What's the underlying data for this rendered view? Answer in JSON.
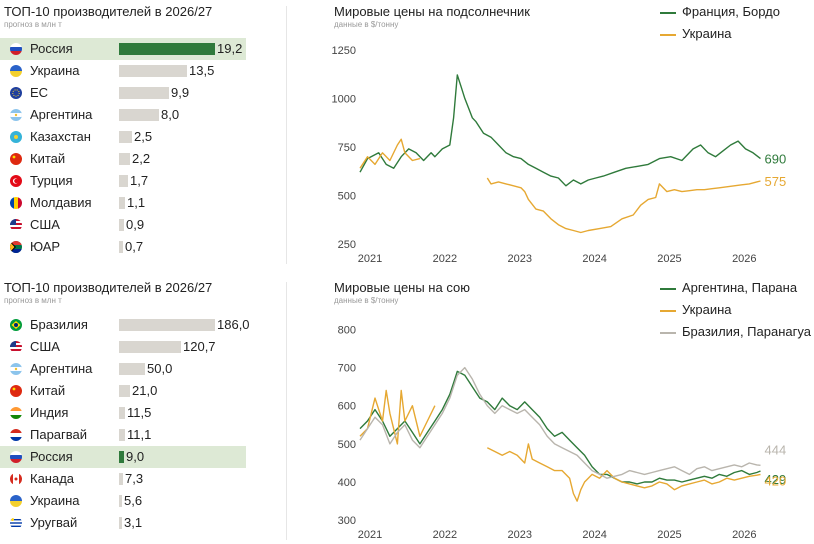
{
  "top": {
    "table": {
      "title": "ТОП-10 производителей в 2026/27",
      "subtitle": "прогноз в млн т",
      "max": 19.2,
      "rows": [
        {
          "country": "Россия",
          "value": 19.2,
          "label": "19,2",
          "flag": "ru",
          "highlight": true
        },
        {
          "country": "Украина",
          "value": 13.5,
          "label": "13,5",
          "flag": "ua",
          "highlight": false
        },
        {
          "country": "ЕС",
          "value": 9.9,
          "label": "9,9",
          "flag": "eu",
          "highlight": false
        },
        {
          "country": "Аргентина",
          "value": 8.0,
          "label": "8,0",
          "flag": "ar",
          "highlight": false
        },
        {
          "country": "Казахстан",
          "value": 2.5,
          "label": "2,5",
          "flag": "kz",
          "highlight": false
        },
        {
          "country": "Китай",
          "value": 2.2,
          "label": "2,2",
          "flag": "cn",
          "highlight": false
        },
        {
          "country": "Турция",
          "value": 1.7,
          "label": "1,7",
          "flag": "tr",
          "highlight": false
        },
        {
          "country": "Молдавия",
          "value": 1.1,
          "label": "1,1",
          "flag": "md",
          "highlight": false
        },
        {
          "country": "США",
          "value": 0.9,
          "label": "0,9",
          "flag": "us",
          "highlight": false
        },
        {
          "country": "ЮАР",
          "value": 0.7,
          "label": "0,7",
          "flag": "za",
          "highlight": false
        }
      ]
    },
    "chart": {
      "title": "Мировые цены на подсолнечник",
      "subtitle": "данные в $/тонну",
      "legend": [
        "Франция, Бордо",
        "Украина"
      ]
    }
  },
  "bottom": {
    "table": {
      "title": "ТОП-10 производителей в 2026/27",
      "subtitle": "прогноз в млн т",
      "max": 186.0,
      "rows": [
        {
          "country": "Бразилия",
          "value": 186.0,
          "label": "186,0",
          "flag": "br",
          "highlight": false
        },
        {
          "country": "США",
          "value": 120.7,
          "label": "120,7",
          "flag": "us",
          "highlight": false
        },
        {
          "country": "Аргентина",
          "value": 50.0,
          "label": "50,0",
          "flag": "ar",
          "highlight": false
        },
        {
          "country": "Китай",
          "value": 21.0,
          "label": "21,0",
          "flag": "cn",
          "highlight": false
        },
        {
          "country": "Индия",
          "value": 11.5,
          "label": "11,5",
          "flag": "in",
          "highlight": false
        },
        {
          "country": "Парагвай",
          "value": 11.1,
          "label": "11,1",
          "flag": "py",
          "highlight": false
        },
        {
          "country": "Россия",
          "value": 9.0,
          "label": "9,0",
          "flag": "ru",
          "highlight": true
        },
        {
          "country": "Канада",
          "value": 7.3,
          "label": "7,3",
          "flag": "ca",
          "highlight": false
        },
        {
          "country": "Украина",
          "value": 5.6,
          "label": "5,6",
          "flag": "ua",
          "highlight": false
        },
        {
          "country": "Уругвай",
          "value": 3.1,
          "label": "3,1",
          "flag": "uy",
          "highlight": false
        }
      ]
    },
    "chart": {
      "title": "Мировые цены на сою",
      "subtitle": "данные в $/тонну",
      "legend": [
        "Аргентина, Парана",
        "Украина",
        "Бразилия, Паранагуа"
      ]
    }
  },
  "colors": {
    "green": "#2f7a3b",
    "orange": "#e6a832",
    "gray": "#b9b5ad",
    "bar": "#d9d6d0",
    "highlight": "#dde9d5"
  },
  "chart_data": [
    {
      "type": "line",
      "title": "Мировые цены на подсолнечник",
      "subtitle": "данные в $/тонну",
      "x_ticks": [
        "2021",
        "2022",
        "2023",
        "2024",
        "2025",
        "2026"
      ],
      "y_ticks": [
        250,
        500,
        750,
        1000,
        1250
      ],
      "xlim": [
        2021.0,
        2026.45
      ],
      "ylim": [
        230,
        1290
      ],
      "series": [
        {
          "name": "Франция, Бордо",
          "color": "#2f7a3b",
          "end_label": "690",
          "x": [
            2021.0,
            2021.1,
            2021.25,
            2021.35,
            2021.45,
            2021.55,
            2021.65,
            2021.75,
            2021.85,
            2021.95,
            2022.0,
            2022.1,
            2022.2,
            2022.25,
            2022.3,
            2022.35,
            2022.4,
            2022.45,
            2022.5,
            2022.55,
            2022.65,
            2022.75,
            2022.85,
            2022.95,
            2023.05,
            2023.15,
            2023.25,
            2023.35,
            2023.45,
            2023.55,
            2023.65,
            2023.75,
            2023.85,
            2023.95,
            2024.05,
            2024.15,
            2024.25,
            2024.4,
            2024.55,
            2024.7,
            2024.85,
            2025.0,
            2025.15,
            2025.3,
            2025.45,
            2025.55,
            2025.65,
            2025.75,
            2025.85,
            2025.95,
            2026.05,
            2026.15,
            2026.25,
            2026.35
          ],
          "y": [
            620,
            690,
            720,
            660,
            640,
            700,
            740,
            720,
            680,
            720,
            700,
            740,
            760,
            900,
            1120,
            1060,
            1000,
            950,
            900,
            880,
            820,
            800,
            760,
            720,
            700,
            690,
            660,
            640,
            620,
            600,
            590,
            550,
            580,
            560,
            580,
            590,
            600,
            620,
            640,
            650,
            660,
            690,
            700,
            680,
            740,
            760,
            720,
            700,
            730,
            760,
            780,
            740,
            720,
            690
          ]
        },
        {
          "name": "Украина",
          "color": "#e6a832",
          "end_label": "575",
          "x": [
            2021.0,
            2021.1,
            2021.2,
            2021.3,
            2021.4,
            2021.5,
            2021.55,
            2021.6,
            2021.7,
            2021.8,
            null,
            2022.7,
            2022.75,
            2022.85,
            2022.95,
            2023.05,
            2023.15,
            2023.2,
            2023.25,
            2023.35,
            2023.45,
            2023.55,
            2023.65,
            2023.75,
            2023.85,
            2023.95,
            2024.05,
            2024.2,
            2024.35,
            2024.5,
            2024.65,
            2024.75,
            2024.85,
            2024.95,
            2025.0,
            2025.1,
            2025.2,
            2025.3,
            2025.4,
            2025.5,
            2025.6,
            2025.7,
            2025.8,
            2025.9,
            2026.0,
            2026.1,
            2026.2,
            2026.3,
            2026.35
          ],
          "y": [
            640,
            700,
            660,
            720,
            680,
            760,
            790,
            720,
            680,
            690,
            null,
            590,
            560,
            570,
            560,
            550,
            540,
            520,
            480,
            430,
            420,
            380,
            350,
            330,
            320,
            310,
            320,
            330,
            340,
            380,
            400,
            450,
            480,
            490,
            560,
            520,
            530,
            520,
            525,
            530,
            530,
            535,
            540,
            545,
            550,
            555,
            560,
            570,
            575
          ]
        }
      ]
    },
    {
      "type": "line",
      "title": "Мировые цены на сою",
      "subtitle": "данные в $/тонну",
      "x_ticks": [
        "2021",
        "2022",
        "2023",
        "2024",
        "2025",
        "2026"
      ],
      "y_ticks": [
        300,
        400,
        500,
        600,
        700,
        800
      ],
      "xlim": [
        2021.0,
        2026.45
      ],
      "ylim": [
        290,
        830
      ],
      "series": [
        {
          "name": "Аргентина, Парана",
          "color": "#2f7a3b",
          "end_label": "429",
          "x": [
            2021.0,
            2021.1,
            2021.2,
            2021.3,
            2021.4,
            2021.5,
            2021.6,
            2021.7,
            2021.8,
            2021.9,
            2022.0,
            2022.1,
            2022.2,
            2022.25,
            2022.3,
            2022.4,
            2022.5,
            2022.6,
            2022.7,
            2022.8,
            2022.9,
            2023.0,
            2023.1,
            2023.2,
            2023.3,
            2023.4,
            2023.5,
            2023.6,
            2023.7,
            2023.8,
            2023.9,
            2024.0,
            2024.1,
            2024.2,
            2024.3,
            2024.4,
            2024.5,
            2024.6,
            2024.7,
            2024.8,
            2024.9,
            2025.0,
            2025.1,
            2025.2,
            2025.3,
            2025.4,
            2025.5,
            2025.6,
            2025.7,
            2025.8,
            2025.9,
            2026.0,
            2026.1,
            2026.2,
            2026.3,
            2026.35
          ],
          "y": [
            540,
            560,
            590,
            560,
            520,
            540,
            560,
            530,
            500,
            530,
            560,
            590,
            630,
            660,
            690,
            680,
            650,
            620,
            610,
            590,
            620,
            600,
            590,
            610,
            590,
            570,
            540,
            520,
            530,
            510,
            490,
            470,
            440,
            420,
            420,
            410,
            400,
            400,
            395,
            400,
            400,
            410,
            405,
            405,
            400,
            405,
            410,
            415,
            410,
            420,
            415,
            425,
            430,
            420,
            425,
            429
          ]
        },
        {
          "name": "Украина",
          "color": "#e6a832",
          "end_label": "420",
          "x": [
            2021.0,
            2021.1,
            2021.2,
            2021.3,
            2021.35,
            2021.4,
            2021.5,
            2021.55,
            2021.6,
            2021.7,
            2021.8,
            2021.9,
            2022.0,
            null,
            2022.7,
            2022.8,
            2022.9,
            2023.0,
            2023.1,
            2023.2,
            2023.25,
            2023.3,
            2023.4,
            2023.5,
            2023.6,
            2023.7,
            2023.8,
            2023.85,
            2023.9,
            2023.95,
            2024.0,
            2024.1,
            2024.2,
            2024.3,
            2024.4,
            2024.5,
            2024.6,
            2024.7,
            2024.8,
            2024.9,
            2025.0,
            2025.1,
            2025.2,
            2025.3,
            2025.4,
            2025.5,
            2025.6,
            2025.7,
            2025.8,
            2025.9,
            2026.0,
            2026.1,
            2026.2,
            2026.3,
            2026.35
          ],
          "y": [
            520,
            540,
            620,
            560,
            640,
            580,
            500,
            640,
            560,
            600,
            520,
            560,
            600,
            null,
            490,
            480,
            470,
            480,
            470,
            450,
            500,
            460,
            450,
            440,
            430,
            430,
            410,
            370,
            350,
            380,
            400,
            420,
            410,
            430,
            410,
            400,
            395,
            390,
            385,
            390,
            400,
            395,
            380,
            390,
            395,
            400,
            405,
            395,
            400,
            410,
            405,
            410,
            415,
            418,
            420
          ]
        },
        {
          "name": "Бразилия, Паранагуа",
          "color": "#b9b5ad",
          "end_label": "444",
          "x": [
            2021.0,
            2021.1,
            2021.2,
            2021.3,
            2021.4,
            2021.5,
            2021.6,
            2021.7,
            2021.8,
            2021.9,
            2022.0,
            2022.1,
            2022.2,
            2022.3,
            2022.4,
            2022.5,
            2022.6,
            2022.7,
            2022.8,
            2022.9,
            2023.0,
            2023.1,
            2023.2,
            2023.3,
            2023.4,
            2023.5,
            2023.6,
            2023.7,
            2023.8,
            2023.9,
            2024.0,
            2024.1,
            2024.2,
            2024.3,
            2024.4,
            2024.5,
            2024.6,
            2024.7,
            2024.8,
            2024.9,
            2025.0,
            2025.1,
            2025.2,
            2025.3,
            2025.4,
            2025.5,
            2025.6,
            2025.7,
            2025.8,
            2025.9,
            2026.0,
            2026.1,
            2026.2,
            2026.3,
            2026.35
          ],
          "y": [
            510,
            540,
            570,
            550,
            500,
            530,
            550,
            510,
            490,
            520,
            550,
            580,
            620,
            680,
            700,
            670,
            630,
            600,
            580,
            600,
            590,
            580,
            590,
            570,
            550,
            520,
            500,
            490,
            480,
            470,
            450,
            430,
            420,
            410,
            415,
            420,
            430,
            425,
            420,
            425,
            430,
            435,
            440,
            430,
            420,
            435,
            440,
            430,
            435,
            440,
            445,
            440,
            450,
            445,
            444
          ]
        }
      ]
    }
  ]
}
